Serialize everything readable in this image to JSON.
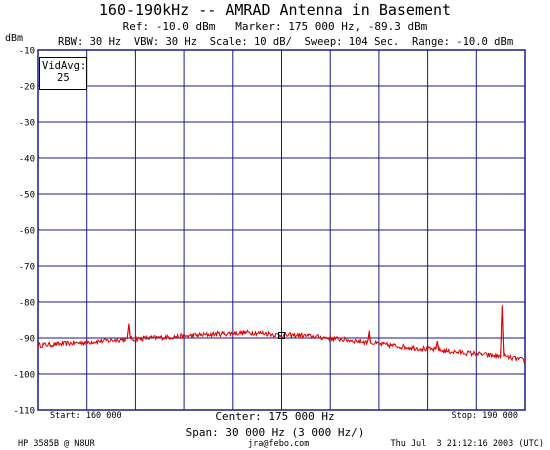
{
  "header": {
    "title": "160-190kHz -- AMRAD Antenna in Basement",
    "ref_line": "Ref: -10.0 dBm   Marker: 175 000 Hz, -89.3 dBm",
    "unit": "dBm",
    "settings": "RBW: 30 Hz  VBW: 30 Hz  Scale: 10 dB/  Sweep: 104 Sec.  Range: -10.0 dBm"
  },
  "overlay": {
    "vidavg_label": "VidAvg:",
    "vidavg_value": "25"
  },
  "footer": {
    "start": "Start: 160 000",
    "stop": "Stop: 190 000",
    "center": "Center: 175 000 Hz",
    "span": "Span: 30 000 Hz (3 000 Hz/)",
    "instrument": "HP 3585B @ N8UR",
    "email": "jra@febo.com",
    "date": "Thu Jul  3 21:12:16 2003 (UTC)"
  },
  "colors": {
    "grid": "#1a1a8c",
    "trace": "#dd0000",
    "background": "#ffffff"
  },
  "chart_data": {
    "type": "line",
    "title": "160-190kHz -- AMRAD Antenna in Basement",
    "xlabel": "",
    "ylabel": "dBm",
    "xlim": [
      160000,
      190000
    ],
    "ylim": [
      -110,
      -10
    ],
    "grid": true,
    "y_ticks": [
      -10,
      -20,
      -30,
      -40,
      -50,
      -60,
      -70,
      -80,
      -90,
      -100,
      -110
    ],
    "x_divisions": 10,
    "marker": {
      "x": 175000,
      "y": -89.3
    },
    "x": [
      160000,
      161000,
      162000,
      163000,
      164000,
      165000,
      165500,
      165600,
      165700,
      166000,
      167000,
      168000,
      169000,
      170000,
      171000,
      172000,
      173000,
      174000,
      175000,
      176000,
      177000,
      178000,
      179000,
      180000,
      180300,
      180400,
      180500,
      181000,
      182000,
      183000,
      184000,
      184500,
      184600,
      184700,
      185000,
      186000,
      187000,
      188000,
      188500,
      188600,
      188700,
      188800,
      189000,
      189500,
      190000
    ],
    "values": [
      -92.0,
      -91.8,
      -91.5,
      -91.2,
      -90.8,
      -90.5,
      -90.3,
      -86.0,
      -90.3,
      -90.3,
      -90.0,
      -89.8,
      -89.5,
      -89.2,
      -88.9,
      -88.7,
      -88.5,
      -88.7,
      -89.3,
      -89.2,
      -89.6,
      -90.1,
      -90.5,
      -91.0,
      -91.2,
      -88.5,
      -91.3,
      -91.7,
      -92.2,
      -92.7,
      -93.1,
      -93.3,
      -91.0,
      -93.4,
      -93.6,
      -94.0,
      -94.4,
      -94.9,
      -95.1,
      -81.5,
      -94.5,
      -95.2,
      -95.5,
      -95.8,
      -96.3
    ]
  }
}
